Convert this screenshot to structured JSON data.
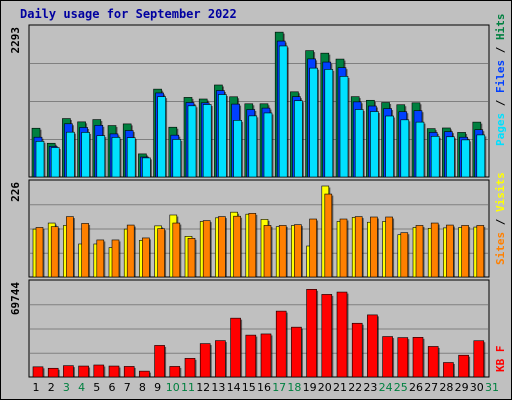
{
  "title": "Daily usage for September 2022",
  "colors": {
    "hits": "#008040",
    "files": "#0040ff",
    "pages": "#00e0ff",
    "visits": "#ffff00",
    "sites": "#ff8000",
    "kbytes": "#ff0000",
    "weekday_label": "#000000",
    "weekend_label": "#008040"
  },
  "chart_data": [
    {
      "type": "bar",
      "panel": "top",
      "ymax_label": "2293",
      "ylim": [
        0,
        2293
      ],
      "legend_labels": [
        "Pages",
        "Files",
        "Hits"
      ],
      "categories": [
        "1",
        "2",
        "3",
        "4",
        "5",
        "6",
        "7",
        "8",
        "9",
        "10",
        "11",
        "12",
        "13",
        "14",
        "15",
        "16",
        "17",
        "18",
        "19",
        "20",
        "21",
        "22",
        "23",
        "24",
        "25",
        "26",
        "27",
        "28",
        "29",
        "30"
      ],
      "series": [
        {
          "name": "Hits",
          "values": [
            766,
            530,
            918,
            866,
            902,
            808,
            834,
            363,
            1380,
            782,
            1250,
            1225,
            1445,
            1260,
            1150,
            1150,
            2275,
            1338,
            1985,
            1945,
            1852,
            1262,
            1205,
            1170,
            1135,
            1165,
            760,
            770,
            700,
            862
          ]
        },
        {
          "name": "Files",
          "values": [
            625,
            480,
            836,
            778,
            812,
            677,
            729,
            314,
            1320,
            657,
            1170,
            1165,
            1358,
            1145,
            1060,
            1082,
            2135,
            1262,
            1855,
            1805,
            1717,
            1180,
            1115,
            1075,
            1025,
            1041,
            700,
            712,
            625,
            743
          ]
        },
        {
          "name": "Pages",
          "values": [
            560,
            462,
            704,
            700,
            650,
            622,
            618,
            300,
            1262,
            590,
            1118,
            1138,
            1295,
            890,
            960,
            1006,
            2058,
            1198,
            1710,
            1690,
            1580,
            1060,
            1028,
            958,
            898,
            862,
            639,
            632,
            583,
            661
          ]
        }
      ],
      "x_day_labels": [
        "1",
        "2",
        "3",
        "4",
        "5",
        "6",
        "7",
        "8",
        "9",
        "10",
        "11",
        "12",
        "13",
        "14",
        "15",
        "16",
        "17",
        "18",
        "19",
        "20",
        "21",
        "22",
        "23",
        "24",
        "25",
        "26",
        "27",
        "28",
        "29",
        "30",
        "31"
      ],
      "weekend_days": [
        3,
        4,
        10,
        11,
        17,
        18,
        24,
        25,
        31
      ]
    },
    {
      "type": "bar",
      "panel": "middle",
      "ymax_label": "226",
      "ylim": [
        0,
        226
      ],
      "legend_labels": [
        "Sites",
        "Visits"
      ],
      "series": [
        {
          "name": "Visits",
          "values": [
            119,
            134,
            128,
            82,
            82,
            73,
            119,
            91,
            127,
            154,
            101,
            138,
            147,
            161,
            156,
            143,
            125,
            128,
            77,
            226,
            138,
            148,
            136,
            138,
            105,
            123,
            121,
            122,
            123,
            124
          ]
        },
        {
          "name": "Sites",
          "values": [
            123,
            125,
            150,
            133,
            92,
            92,
            129,
            97,
            120,
            134,
            96,
            140,
            150,
            151,
            158,
            128,
            128,
            130,
            144,
            206,
            144,
            150,
            149,
            149,
            110,
            128,
            134,
            129,
            128,
            128
          ]
        }
      ]
    },
    {
      "type": "bar",
      "panel": "bottom",
      "ymax_label": "69744",
      "ylim": [
        0,
        69744
      ],
      "legend_labels": [
        "KB",
        "F"
      ],
      "series": [
        {
          "name": "KB F",
          "values": [
            7800,
            6700,
            8700,
            8400,
            9200,
            8400,
            8100,
            4500,
            24200,
            8100,
            14300,
            25600,
            27900,
            45100,
            32100,
            33000,
            50500,
            38200,
            67200,
            63300,
            65100,
            41200,
            47600,
            31000,
            30200,
            30400,
            23400,
            11100,
            16700,
            27800
          ]
        }
      ]
    }
  ]
}
